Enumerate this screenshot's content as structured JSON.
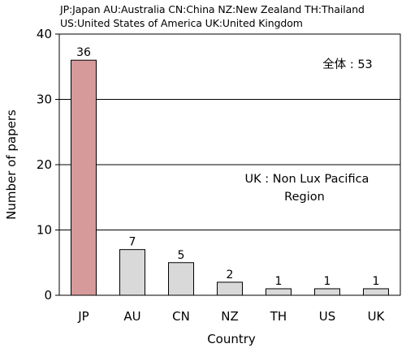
{
  "notes": {
    "line1": "JP:Japan   AU:Australia   CN:China   NZ:New Zealand   TH:Thailand",
    "line2": "US:United States of America    UK:United Kingdom"
  },
  "chart_data": {
    "type": "bar",
    "title": "",
    "xlabel": "Country",
    "ylabel": "Number of papers",
    "categories": [
      "JP",
      "AU",
      "CN",
      "NZ",
      "TH",
      "US",
      "UK"
    ],
    "values": [
      36,
      7,
      5,
      2,
      1,
      1,
      1
    ],
    "data_labels": [
      "36",
      "7",
      "5",
      "2",
      "1",
      "1",
      "1"
    ],
    "ylim": [
      0,
      40
    ],
    "yticks": [
      0,
      10,
      20,
      30,
      40
    ],
    "ytick_labels": [
      "0",
      "10",
      "20",
      "30",
      "40"
    ],
    "grid": true,
    "bar_colors": [
      "#d69a9b",
      "#d9d9d9",
      "#d9d9d9",
      "#d9d9d9",
      "#d9d9d9",
      "#d9d9d9",
      "#d9d9d9"
    ],
    "total_label": "全体 : 53",
    "annotation_line1": "UK : Non Lux Pacifica",
    "annotation_line2": "Region"
  }
}
